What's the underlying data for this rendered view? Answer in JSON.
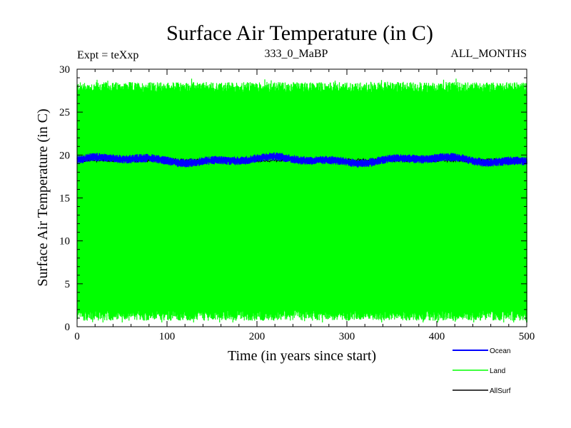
{
  "chart_data": {
    "type": "line",
    "title": "Surface Air Temperature (in C)",
    "subtitle_left": "Expt = teXxp",
    "subtitle_center": "333_0_MaBP",
    "subtitle_right": "ALL_MONTHS",
    "xlabel": "Time (in years since start)",
    "ylabel": "Surface Air Temperature (in C)",
    "xlim": [
      0,
      500
    ],
    "ylim": [
      0,
      30
    ],
    "xticks": [
      0,
      100,
      200,
      300,
      400,
      500
    ],
    "yticks": [
      0,
      5,
      10,
      15,
      20,
      25,
      30
    ],
    "series": [
      {
        "name": "Ocean",
        "color": "#0000ff",
        "style": "band",
        "lower": 18.9,
        "upper": 20.0,
        "mean": 19.4
      },
      {
        "name": "Land",
        "color": "#00ff00",
        "style": "seasonal-envelope",
        "min": 0.5,
        "max": 28.5,
        "typical_low": 1.3,
        "typical_high": 27.9
      },
      {
        "name": "AllSurf",
        "color": "#000000",
        "style": "line"
      }
    ],
    "legend_position": "bottom-right"
  }
}
